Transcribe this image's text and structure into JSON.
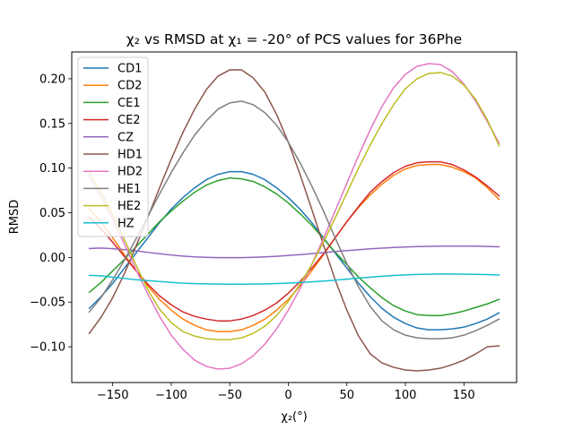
{
  "chart_data": {
    "type": "line",
    "title": "χ₂ vs RMSD at χ₁ = -20° of PCS values for 36Phe",
    "xlabel": "χ₂(°)",
    "ylabel": "RMSD",
    "xlim": [
      -185,
      195
    ],
    "ylim": [
      -0.14,
      0.23
    ],
    "xticks": [
      -150,
      -100,
      -50,
      0,
      50,
      100,
      150
    ],
    "yticks": [
      -0.1,
      -0.05,
      0.0,
      0.05,
      0.1,
      0.15,
      0.2
    ],
    "xtick_labels": [
      "−150",
      "−100",
      "−50",
      "0",
      "50",
      "100",
      "150"
    ],
    "ytick_labels": [
      "−0.10",
      "−0.05",
      "0.00",
      "0.05",
      "0.10",
      "0.15",
      "0.20"
    ],
    "grid": false,
    "legend_position": "upper-left",
    "x": [
      -170,
      -160,
      -150,
      -140,
      -130,
      -120,
      -110,
      -100,
      -90,
      -80,
      -70,
      -60,
      -50,
      -40,
      -30,
      -20,
      -10,
      0,
      10,
      20,
      30,
      40,
      50,
      60,
      70,
      80,
      90,
      100,
      110,
      120,
      130,
      140,
      150,
      160,
      170,
      180
    ],
    "series": [
      {
        "name": "CD1",
        "color": "#1f77b4",
        "values": [
          -0.057,
          -0.044,
          -0.029,
          -0.012,
          0.005,
          0.022,
          0.039,
          0.054,
          0.067,
          0.078,
          0.087,
          0.093,
          0.096,
          0.096,
          0.093,
          0.087,
          0.078,
          0.067,
          0.054,
          0.039,
          0.022,
          0.005,
          -0.012,
          -0.029,
          -0.044,
          -0.057,
          -0.067,
          -0.074,
          -0.079,
          -0.081,
          -0.081,
          -0.08,
          -0.078,
          -0.074,
          -0.069,
          -0.062
        ]
      },
      {
        "name": "CD2",
        "color": "#ff7f0e",
        "values": [
          0.054,
          0.04,
          0.022,
          0.003,
          -0.015,
          -0.032,
          -0.047,
          -0.059,
          -0.069,
          -0.076,
          -0.081,
          -0.083,
          -0.083,
          -0.081,
          -0.076,
          -0.069,
          -0.059,
          -0.047,
          -0.032,
          -0.015,
          0.003,
          0.022,
          0.04,
          0.056,
          0.07,
          0.082,
          0.092,
          0.099,
          0.103,
          0.104,
          0.104,
          0.101,
          0.096,
          0.089,
          0.078,
          0.065
        ]
      },
      {
        "name": "CE1",
        "color": "#2ca02c",
        "values": [
          -0.039,
          -0.028,
          -0.015,
          -0.002,
          0.012,
          0.026,
          0.04,
          0.052,
          0.063,
          0.073,
          0.081,
          0.086,
          0.089,
          0.088,
          0.085,
          0.079,
          0.071,
          0.061,
          0.049,
          0.036,
          0.021,
          0.006,
          -0.008,
          -0.022,
          -0.034,
          -0.045,
          -0.054,
          -0.06,
          -0.064,
          -0.065,
          -0.065,
          -0.063,
          -0.06,
          -0.056,
          -0.052,
          -0.047
        ]
      },
      {
        "name": "CE2",
        "color": "#d62728",
        "values": [
          0.045,
          0.032,
          0.017,
          0.001,
          -0.015,
          -0.03,
          -0.043,
          -0.053,
          -0.061,
          -0.066,
          -0.069,
          -0.071,
          -0.071,
          -0.069,
          -0.065,
          -0.059,
          -0.051,
          -0.04,
          -0.027,
          -0.012,
          0.004,
          0.022,
          0.04,
          0.057,
          0.073,
          0.085,
          0.095,
          0.102,
          0.106,
          0.107,
          0.107,
          0.104,
          0.098,
          0.09,
          0.08,
          0.069
        ]
      },
      {
        "name": "CZ",
        "color": "#9467bd",
        "values": [
          0.01,
          0.0105,
          0.0098,
          0.0088,
          0.0074,
          0.0057,
          0.0041,
          0.0027,
          0.0015,
          0.0006,
          0.0001,
          -0.0002,
          -0.0003,
          -0.0002,
          0.0001,
          0.0006,
          0.0013,
          0.0022,
          0.0032,
          0.0043,
          0.0054,
          0.0066,
          0.0077,
          0.0087,
          0.0096,
          0.0104,
          0.0111,
          0.0117,
          0.0121,
          0.0124,
          0.0126,
          0.0127,
          0.0127,
          0.0126,
          0.0123,
          0.0119
        ]
      },
      {
        "name": "HD1",
        "color": "#8c564b",
        "values": [
          -0.085,
          -0.067,
          -0.045,
          -0.018,
          0.013,
          0.045,
          0.078,
          0.11,
          0.14,
          0.166,
          0.188,
          0.203,
          0.21,
          0.21,
          0.201,
          0.185,
          0.16,
          0.129,
          0.093,
          0.054,
          0.014,
          -0.025,
          -0.059,
          -0.088,
          -0.108,
          -0.118,
          -0.123,
          -0.126,
          -0.127,
          -0.126,
          -0.124,
          -0.12,
          -0.115,
          -0.108,
          -0.1,
          -0.099
        ]
      },
      {
        "name": "HD2",
        "color": "#e377c2",
        "values": [
          0.09,
          0.068,
          0.043,
          0.015,
          -0.014,
          -0.041,
          -0.066,
          -0.087,
          -0.103,
          -0.115,
          -0.122,
          -0.125,
          -0.124,
          -0.119,
          -0.11,
          -0.097,
          -0.08,
          -0.059,
          -0.035,
          -0.008,
          0.021,
          0.052,
          0.083,
          0.114,
          0.143,
          0.169,
          0.19,
          0.205,
          0.214,
          0.217,
          0.216,
          0.208,
          0.194,
          0.175,
          0.152,
          0.128
        ]
      },
      {
        "name": "HE1",
        "color": "#7f7f7f",
        "values": [
          -0.061,
          -0.045,
          -0.025,
          -0.003,
          0.021,
          0.046,
          0.071,
          0.095,
          0.117,
          0.137,
          0.153,
          0.166,
          0.173,
          0.175,
          0.171,
          0.162,
          0.148,
          0.129,
          0.106,
          0.08,
          0.052,
          0.022,
          -0.007,
          -0.033,
          -0.055,
          -0.071,
          -0.081,
          -0.087,
          -0.09,
          -0.091,
          -0.091,
          -0.09,
          -0.087,
          -0.082,
          -0.076,
          -0.069
        ]
      },
      {
        "name": "HE2",
        "color": "#bcbd22",
        "values": [
          0.095,
          0.073,
          0.048,
          0.02,
          -0.009,
          -0.036,
          -0.058,
          -0.073,
          -0.083,
          -0.088,
          -0.091,
          -0.092,
          -0.092,
          -0.09,
          -0.085,
          -0.077,
          -0.065,
          -0.049,
          -0.03,
          -0.008,
          0.017,
          0.044,
          0.072,
          0.1,
          0.126,
          0.15,
          0.171,
          0.189,
          0.2,
          0.206,
          0.207,
          0.203,
          0.193,
          0.177,
          0.154,
          0.125
        ]
      },
      {
        "name": "HZ",
        "color": "#17becf",
        "values": [
          -0.02,
          -0.0205,
          -0.022,
          -0.0235,
          -0.025,
          -0.026,
          -0.027,
          -0.028,
          -0.0288,
          -0.0293,
          -0.0296,
          -0.0298,
          -0.0299,
          -0.0299,
          -0.0298,
          -0.0296,
          -0.0292,
          -0.0287,
          -0.0281,
          -0.0273,
          -0.0264,
          -0.0254,
          -0.0243,
          -0.0232,
          -0.0221,
          -0.0211,
          -0.0202,
          -0.0195,
          -0.019,
          -0.0187,
          -0.0186,
          -0.0186,
          -0.0187,
          -0.0189,
          -0.0192,
          -0.0196
        ]
      }
    ]
  }
}
